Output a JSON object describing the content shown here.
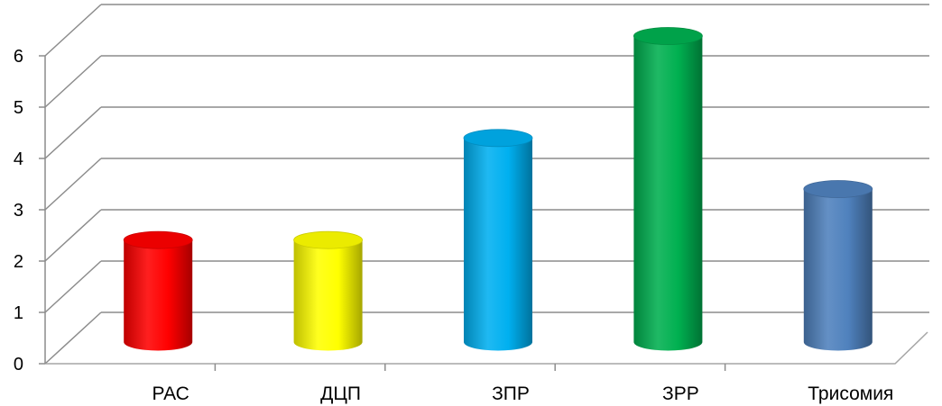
{
  "chart_data": {
    "type": "bar",
    "bar_style": "3d-cylinder",
    "categories": [
      "РАС",
      "ДЦП",
      "ЗПР",
      "ЗРР",
      "Трисомия"
    ],
    "values": [
      2,
      2,
      4,
      6,
      3
    ],
    "colors": [
      "#ff0000",
      "#ffff00",
      "#00b0f0",
      "#00b050",
      "#4f81bd"
    ],
    "yticks": [
      "0",
      "1",
      "2",
      "3",
      "4",
      "5",
      "6"
    ],
    "ylim": [
      0,
      6
    ],
    "grid": true,
    "legend": "none",
    "title": "",
    "xlabel": "",
    "ylabel": ""
  }
}
